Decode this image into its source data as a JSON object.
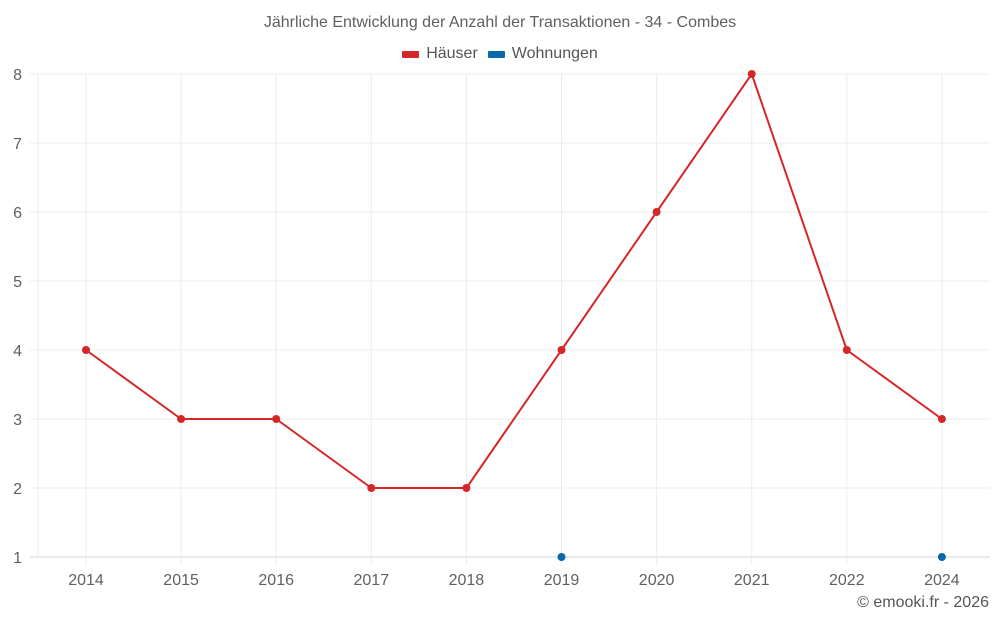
{
  "chart_data": {
    "type": "line",
    "title": "Jährliche Entwicklung der Anzahl der Transaktionen - 34 - Combes",
    "xlabel": "",
    "ylabel": "",
    "categories": [
      "2014",
      "2015",
      "2016",
      "2017",
      "2018",
      "2019",
      "2020",
      "2021",
      "2022",
      "2024"
    ],
    "series": [
      {
        "name": "Häuser",
        "color": "#d62728",
        "values": [
          4,
          3,
          3,
          2,
          2,
          4,
          6,
          8,
          4,
          3
        ]
      },
      {
        "name": "Wohnungen",
        "color": "#0868ac",
        "values": [
          null,
          null,
          null,
          null,
          null,
          1,
          null,
          null,
          null,
          1
        ]
      }
    ],
    "ylim": [
      1,
      8
    ],
    "yticks": [
      1,
      2,
      3,
      4,
      5,
      6,
      7,
      8
    ],
    "grid": true,
    "legend_position": "top-center"
  },
  "title": "Jährliche Entwicklung der Anzahl der Transaktionen - 34 - Combes",
  "legend": [
    {
      "label": "Häuser",
      "color": "#d62728"
    },
    {
      "label": "Wohnungen",
      "color": "#0868ac"
    }
  ],
  "footer": "© emooki.fr - 2026"
}
